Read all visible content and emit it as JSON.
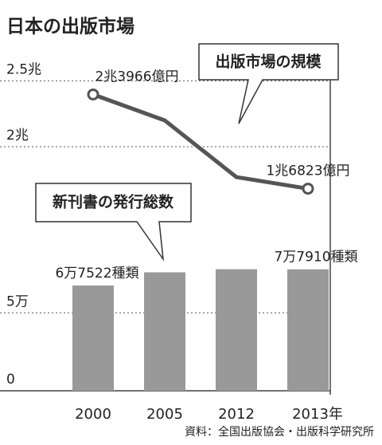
{
  "chart_data": {
    "type": "bar",
    "title": "日本の出版市場",
    "source": "資料：全国出版協会・出版科学研究所",
    "categories": [
      "2000",
      "2005",
      "2012",
      "2013年"
    ],
    "series": [
      {
        "name": "新刊書の発行総数",
        "type": "bar",
        "color": "#999999",
        "values": [
          6.7522,
          7.6,
          7.8,
          7.791
        ],
        "value_labels": [
          "6万7522種類",
          null,
          null,
          "7万7910種類"
        ]
      },
      {
        "name": "出版市場の規模",
        "type": "line",
        "axis": "y2",
        "color": "#555555",
        "values": [
          2.3966,
          2.2,
          1.77,
          1.6823
        ],
        "value_labels": [
          "2兆3966億円",
          null,
          null,
          "1兆6823億円"
        ]
      }
    ],
    "ylim": [
      0,
      22
    ],
    "yticks": [
      0,
      {
        "value": 5,
        "label": "5万"
      }
    ],
    "y2lim": [
      0.15,
      2.75
    ],
    "y2ticks": [
      {
        "value": 2,
        "label": "2兆"
      },
      {
        "value": 2.5,
        "label": "2.5兆"
      }
    ],
    "grid": true
  }
}
